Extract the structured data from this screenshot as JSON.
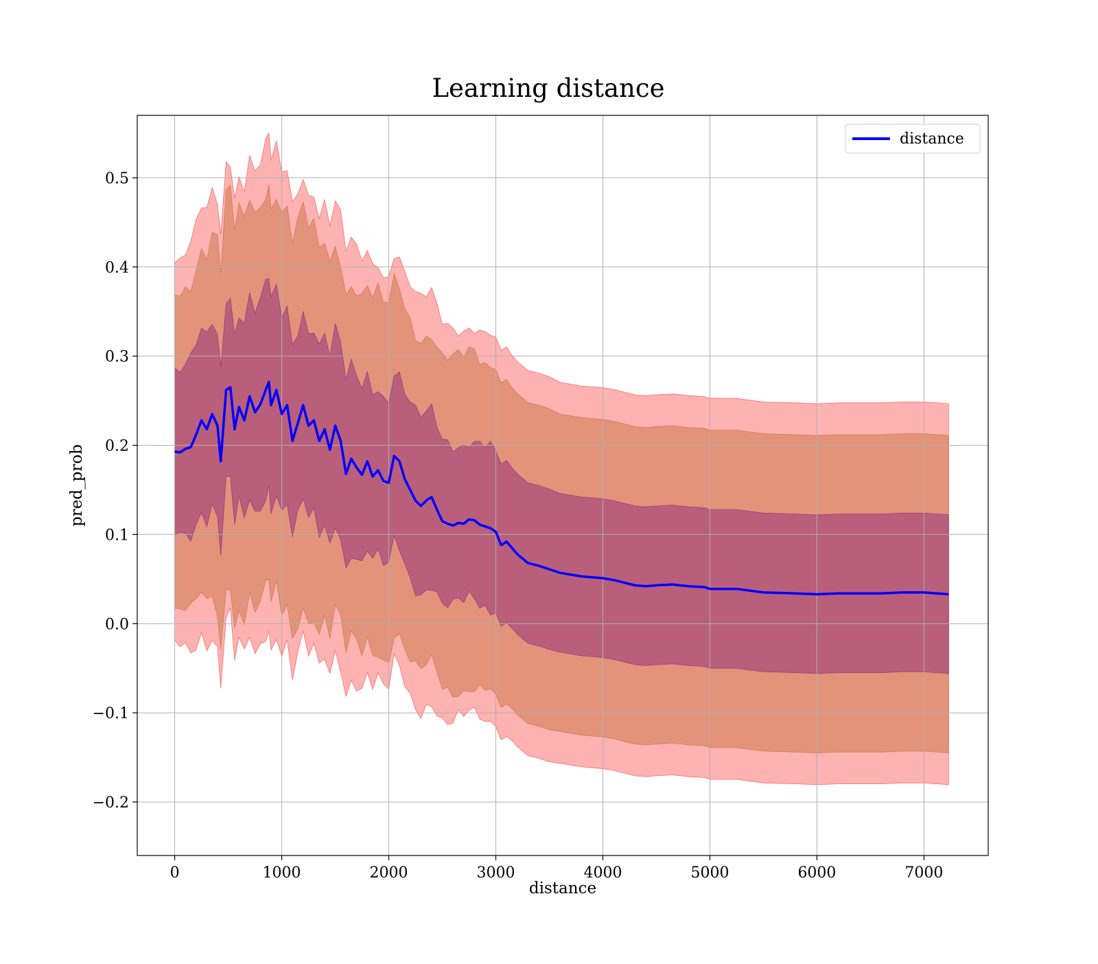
{
  "chart_data": {
    "type": "line",
    "title": "Learning distance",
    "xlabel": "distance",
    "ylabel": "pred_prob",
    "xlim": [
      -350,
      7600
    ],
    "ylim": [
      -0.26,
      0.57
    ],
    "xticks": [
      0,
      1000,
      2000,
      3000,
      4000,
      5000,
      6000,
      7000
    ],
    "xtick_labels": [
      "0",
      "1000",
      "2000",
      "3000",
      "4000",
      "5000",
      "6000",
      "7000"
    ],
    "yticks": [
      -0.2,
      -0.1,
      0.0,
      0.1,
      0.2,
      0.3,
      0.4,
      0.5
    ],
    "ytick_labels": [
      "−0.2",
      "−0.1",
      "0.0",
      "0.1",
      "0.2",
      "0.3",
      "0.4",
      "0.5"
    ],
    "grid": true,
    "legend_position": "top-right",
    "series": [
      {
        "name": "distance",
        "color": "#0000ff",
        "x": [
          0,
          50,
          100,
          150,
          200,
          250,
          300,
          350,
          400,
          430,
          480,
          520,
          560,
          600,
          650,
          700,
          750,
          800,
          850,
          880,
          900,
          950,
          1000,
          1050,
          1100,
          1150,
          1200,
          1250,
          1300,
          1350,
          1400,
          1450,
          1500,
          1550,
          1600,
          1650,
          1700,
          1750,
          1800,
          1850,
          1900,
          1950,
          2000,
          2050,
          2100,
          2150,
          2200,
          2250,
          2300,
          2350,
          2400,
          2450,
          2500,
          2550,
          2600,
          2650,
          2700,
          2750,
          2800,
          2850,
          2900,
          2950,
          3000,
          3050,
          3100,
          3150,
          3200,
          3300,
          3400,
          3500,
          3600,
          3700,
          3800,
          3900,
          4000,
          4100,
          4200,
          4300,
          4400,
          4500,
          4650,
          4800,
          4950,
          5000,
          5100,
          5250,
          5500,
          5800,
          6000,
          6200,
          6400,
          6600,
          6800,
          7000,
          7230
        ],
        "y": [
          0.193,
          0.192,
          0.196,
          0.198,
          0.212,
          0.228,
          0.218,
          0.235,
          0.222,
          0.182,
          0.262,
          0.265,
          0.218,
          0.243,
          0.228,
          0.255,
          0.237,
          0.246,
          0.262,
          0.271,
          0.245,
          0.262,
          0.235,
          0.245,
          0.205,
          0.225,
          0.245,
          0.222,
          0.228,
          0.205,
          0.218,
          0.195,
          0.222,
          0.205,
          0.168,
          0.185,
          0.175,
          0.167,
          0.182,
          0.165,
          0.172,
          0.16,
          0.158,
          0.188,
          0.182,
          0.162,
          0.15,
          0.138,
          0.132,
          0.138,
          0.142,
          0.128,
          0.115,
          0.112,
          0.11,
          0.113,
          0.112,
          0.117,
          0.116,
          0.111,
          0.109,
          0.107,
          0.103,
          0.088,
          0.092,
          0.085,
          0.078,
          0.068,
          0.065,
          0.061,
          0.057,
          0.055,
          0.053,
          0.052,
          0.051,
          0.049,
          0.046,
          0.043,
          0.042,
          0.043,
          0.044,
          0.042,
          0.041,
          0.039,
          0.039,
          0.039,
          0.035,
          0.034,
          0.033,
          0.034,
          0.034,
          0.034,
          0.035,
          0.035,
          0.033
        ],
        "bands": [
          {
            "k": 1,
            "color": "#6b0080",
            "opacity": 0.35,
            "sd": [
              0.089,
              0.089,
              0.091,
              0.093,
              0.096,
              0.098,
              0.1,
              0.103,
              0.105,
              0.106,
              0.108,
              0.108,
              0.11,
              0.11,
              0.111,
              0.112,
              0.112,
              0.112,
              0.113,
              0.113,
              0.113,
              0.112,
              0.112,
              0.111,
              0.111,
              0.11,
              0.11,
              0.109,
              0.108,
              0.107,
              0.106,
              0.105,
              0.104,
              0.103,
              0.102,
              0.101,
              0.1,
              0.1,
              0.099,
              0.099,
              0.099,
              0.098,
              0.098,
              0.097,
              0.097,
              0.096,
              0.096,
              0.095,
              0.095,
              0.094,
              0.094,
              0.093,
              0.093,
              0.093,
              0.093,
              0.092,
              0.092,
              0.092,
              0.092,
              0.091,
              0.091,
              0.091,
              0.091,
              0.091,
              0.091,
              0.09,
              0.09,
              0.09,
              0.09,
              0.09,
              0.089,
              0.089,
              0.089,
              0.089,
              0.089,
              0.089,
              0.089,
              0.089,
              0.089,
              0.089,
              0.089,
              0.089,
              0.089,
              0.089,
              0.089,
              0.089,
              0.089,
              0.089,
              0.089,
              0.089,
              0.089,
              0.089,
              0.089,
              0.089,
              0.089
            ]
          },
          {
            "k": 2,
            "color": "#b05a10",
            "opacity": 0.35
          },
          {
            "k": 2.4,
            "color": "#ff0000",
            "opacity": 0.3
          }
        ]
      }
    ]
  }
}
